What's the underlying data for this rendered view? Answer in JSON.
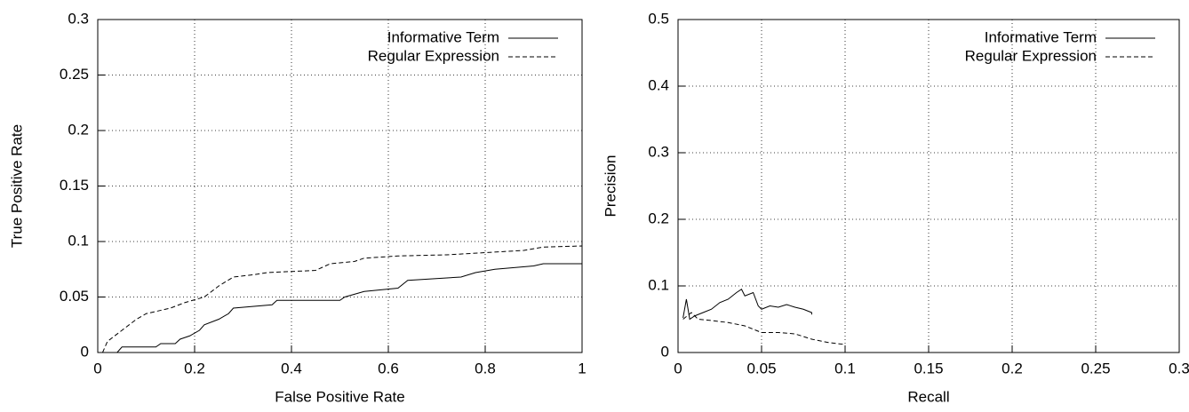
{
  "chart_data": [
    {
      "type": "line",
      "xlabel": "False Positive Rate",
      "ylabel": "True Positive Rate",
      "xlim": [
        0,
        1
      ],
      "ylim": [
        0,
        0.3
      ],
      "xticks": [
        0,
        0.2,
        0.4,
        0.6,
        0.8,
        1
      ],
      "yticks": [
        0,
        0.05,
        0.1,
        0.15,
        0.2,
        0.25,
        0.3
      ],
      "grid": true,
      "legend": "upper right",
      "series": [
        {
          "name": "Informative Term",
          "color": "#000000",
          "line_style": "solid",
          "x": [
            0.04,
            0.05,
            0.12,
            0.13,
            0.16,
            0.17,
            0.19,
            0.21,
            0.22,
            0.25,
            0.27,
            0.28,
            0.36,
            0.37,
            0.5,
            0.51,
            0.55,
            0.62,
            0.64,
            0.75,
            0.78,
            0.82,
            0.9,
            0.92,
            1.0
          ],
          "values": [
            0,
            0.005,
            0.005,
            0.008,
            0.008,
            0.012,
            0.015,
            0.02,
            0.025,
            0.03,
            0.035,
            0.04,
            0.043,
            0.047,
            0.047,
            0.05,
            0.055,
            0.058,
            0.065,
            0.068,
            0.072,
            0.075,
            0.078,
            0.08,
            0.08
          ]
        },
        {
          "name": "Regular Expression",
          "color": "#000000",
          "line_style": "dashed",
          "x": [
            0.01,
            0.02,
            0.05,
            0.08,
            0.1,
            0.15,
            0.18,
            0.22,
            0.25,
            0.28,
            0.32,
            0.35,
            0.45,
            0.48,
            0.53,
            0.55,
            0.62,
            0.72,
            0.8,
            0.88,
            0.92,
            1.0
          ],
          "values": [
            0,
            0.01,
            0.02,
            0.03,
            0.035,
            0.04,
            0.045,
            0.05,
            0.06,
            0.068,
            0.07,
            0.072,
            0.074,
            0.08,
            0.082,
            0.085,
            0.087,
            0.088,
            0.09,
            0.092,
            0.095,
            0.096
          ]
        }
      ]
    },
    {
      "type": "line",
      "xlabel": "Recall",
      "ylabel": "Precision",
      "xlim": [
        0,
        0.3
      ],
      "ylim": [
        0,
        0.5
      ],
      "xticks": [
        0,
        0.05,
        0.1,
        0.15,
        0.2,
        0.25,
        0.3
      ],
      "yticks": [
        0,
        0.1,
        0.2,
        0.3,
        0.4,
        0.5
      ],
      "grid": true,
      "legend": "upper right",
      "series": [
        {
          "name": "Informative Term",
          "color": "#000000",
          "line_style": "solid",
          "x": [
            0.003,
            0.005,
            0.007,
            0.01,
            0.015,
            0.02,
            0.025,
            0.03,
            0.035,
            0.038,
            0.04,
            0.045,
            0.048,
            0.05,
            0.055,
            0.06,
            0.065,
            0.07,
            0.075,
            0.08,
            0.08
          ],
          "values": [
            0.052,
            0.08,
            0.05,
            0.055,
            0.06,
            0.065,
            0.075,
            0.08,
            0.09,
            0.095,
            0.085,
            0.09,
            0.07,
            0.065,
            0.07,
            0.068,
            0.072,
            0.068,
            0.065,
            0.06,
            0.057
          ]
        },
        {
          "name": "Regular Expression",
          "color": "#000000",
          "line_style": "dashed",
          "x": [
            0.003,
            0.008,
            0.012,
            0.02,
            0.03,
            0.04,
            0.045,
            0.05,
            0.06,
            0.07,
            0.08,
            0.09,
            0.1
          ],
          "values": [
            0.05,
            0.06,
            0.05,
            0.048,
            0.045,
            0.04,
            0.035,
            0.03,
            0.03,
            0.028,
            0.02,
            0.015,
            0.012
          ]
        }
      ]
    }
  ]
}
